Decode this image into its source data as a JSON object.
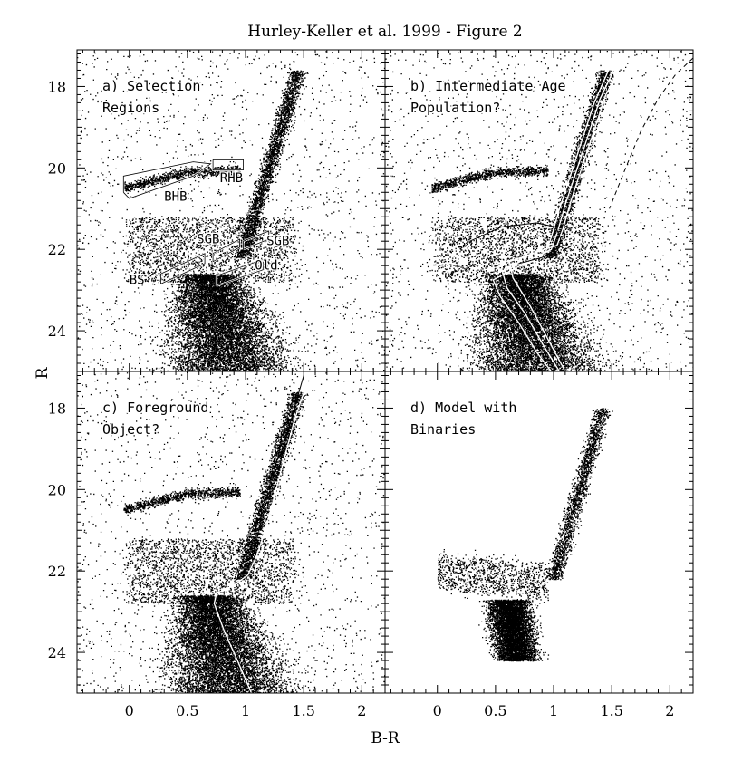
{
  "title": "Hurley-Keller et al. 1999 - Figure 2",
  "chart_data": {
    "type": "scatter",
    "xlabel": "B-R",
    "ylabel": "R",
    "xlim": [
      -0.45,
      2.2
    ],
    "ylim": [
      25.0,
      17.1
    ],
    "y_inverted": true,
    "xticks": [
      {
        "v": 0,
        "label": "0"
      },
      {
        "v": 0.5,
        "label": "0.5"
      },
      {
        "v": 1,
        "label": "1"
      },
      {
        "v": 1.5,
        "label": "1.5"
      },
      {
        "v": 2,
        "label": "2"
      }
    ],
    "yticks": [
      {
        "v": 18,
        "label": "18"
      },
      {
        "v": 20,
        "label": "20"
      },
      {
        "v": 22,
        "label": "22"
      },
      {
        "v": 24,
        "label": "24"
      }
    ],
    "panels": [
      {
        "id": "a",
        "label_lines": [
          "a) Selection",
          "Regions"
        ],
        "population": "observed",
        "regions": [
          {
            "name": "BHB",
            "label_pos": [
              0.3,
              20.8
            ],
            "polygon": [
              [
                -0.05,
                20.6
              ],
              [
                -0.05,
                20.2
              ],
              [
                0.55,
                19.85
              ],
              [
                0.7,
                19.9
              ],
              [
                0.55,
                20.2
              ],
              [
                0.0,
                20.75
              ]
            ]
          },
          {
            "name": "RHB",
            "label_pos": [
              0.78,
              20.35
            ],
            "polygon": [
              [
                0.72,
                19.8
              ],
              [
                0.98,
                19.8
              ],
              [
                0.98,
                20.05
              ],
              [
                0.72,
                20.05
              ]
            ]
          },
          {
            "name": "SGB",
            "label_pos": [
              0.58,
              21.85
            ],
            "polygon": [
              [
                0.72,
                22.3
              ],
              [
                0.95,
                21.95
              ],
              [
                0.95,
                21.75
              ],
              [
                0.72,
                22.1
              ]
            ]
          },
          {
            "name": "SGB",
            "label_pos": [
              1.18,
              21.9
            ],
            "polygon": [
              [
                0.98,
                22.0
              ],
              [
                1.2,
                21.75
              ],
              [
                1.2,
                21.55
              ],
              [
                0.98,
                21.8
              ]
            ]
          },
          {
            "name": "Old",
            "label_pos": [
              1.08,
              22.5
            ],
            "polygon": [
              [
                0.75,
                22.9
              ],
              [
                1.15,
                22.5
              ],
              [
                1.15,
                22.25
              ],
              [
                0.75,
                22.65
              ]
            ]
          },
          {
            "name": "BS",
            "label_pos": [
              0.0,
              22.85
            ],
            "polygon": [
              [
                0.27,
                22.85
              ],
              [
                0.65,
                22.35
              ],
              [
                0.65,
                22.1
              ],
              [
                0.27,
                22.6
              ]
            ]
          }
        ]
      },
      {
        "id": "b",
        "label_lines": [
          "b) Intermediate Age",
          "Population?"
        ],
        "population": "observed",
        "isochrones_white": [
          [
            [
              1.65,
              17.1
            ],
            [
              1.45,
              18.2
            ],
            [
              1.3,
              19.5
            ],
            [
              1.15,
              20.8
            ],
            [
              1.08,
              21.5
            ],
            [
              1.03,
              21.9
            ],
            [
              0.82,
              22.1
            ],
            [
              0.62,
              22.3
            ],
            [
              0.65,
              22.7
            ],
            [
              0.8,
              23.4
            ],
            [
              0.95,
              24.2
            ],
            [
              1.1,
              25.0
            ]
          ],
          [
            [
              1.6,
              17.1
            ],
            [
              1.4,
              18.3
            ],
            [
              1.24,
              19.7
            ],
            [
              1.1,
              20.9
            ],
            [
              1.03,
              21.6
            ],
            [
              0.98,
              22.0
            ],
            [
              0.76,
              22.3
            ],
            [
              0.56,
              22.55
            ],
            [
              0.6,
              22.95
            ],
            [
              0.76,
              23.6
            ],
            [
              0.92,
              24.4
            ],
            [
              1.05,
              25.0
            ]
          ],
          [
            [
              1.55,
              17.1
            ],
            [
              1.35,
              18.4
            ],
            [
              1.19,
              19.8
            ],
            [
              1.05,
              21.0
            ],
            [
              0.98,
              21.7
            ],
            [
              0.92,
              22.15
            ],
            [
              0.68,
              22.45
            ],
            [
              0.48,
              22.75
            ],
            [
              0.54,
              23.15
            ],
            [
              0.7,
              23.8
            ],
            [
              0.86,
              24.55
            ],
            [
              0.98,
              25.0
            ]
          ]
        ],
        "isochrone_black": [
          [
            0.28,
            21.8
          ],
          [
            0.55,
            21.45
          ],
          [
            0.85,
            21.35
          ],
          [
            1.02,
            21.45
          ],
          [
            1.08,
            21.9
          ],
          [
            0.9,
            22.2
          ],
          [
            0.7,
            22.35
          ]
        ],
        "isochrone_dashed": [
          [
            2.2,
            17.3
          ],
          [
            2.05,
            17.7
          ],
          [
            1.9,
            18.3
          ],
          [
            1.75,
            19.1
          ],
          [
            1.62,
            20.0
          ],
          [
            1.48,
            21.0
          ]
        ]
      },
      {
        "id": "c",
        "label_lines": [
          "c) Foreground",
          "Object?"
        ],
        "population": "observed",
        "isochrone_white": [
          [
            1.55,
            17.2
          ],
          [
            1.42,
            18.3
          ],
          [
            1.3,
            19.6
          ],
          [
            1.18,
            20.9
          ],
          [
            1.1,
            21.6
          ],
          [
            1.02,
            22.1
          ],
          [
            0.9,
            22.35
          ],
          [
            0.75,
            22.55
          ],
          [
            0.73,
            22.8
          ],
          [
            0.82,
            23.5
          ],
          [
            0.93,
            24.2
          ],
          [
            1.05,
            25.0
          ]
        ],
        "isochrone_black": [
          [
            1.5,
            17.2
          ],
          [
            1.38,
            18.4
          ],
          [
            1.26,
            19.8
          ]
        ]
      },
      {
        "id": "d",
        "label_lines": [
          "d) Model with",
          "Binaries"
        ],
        "population": "model"
      }
    ]
  }
}
